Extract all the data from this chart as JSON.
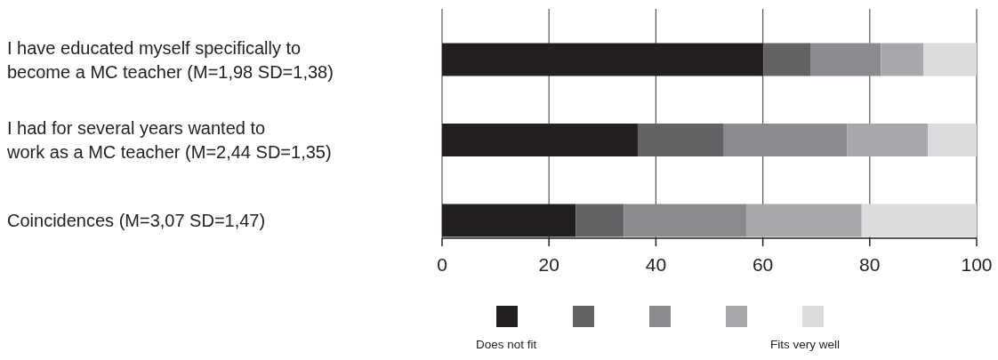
{
  "chart_data": {
    "type": "bar",
    "orientation": "horizontal",
    "stacked": true,
    "categories": [
      "I have educated myself specifically to\nbecome a MC teacher (M=1,98 SD=1,38)",
      "I had for several years wanted to\nwork as a MC teacher (M=2,44 SD=1,35)",
      "Coincidences  (M=3,07 SD=1,47)"
    ],
    "series": [
      {
        "name": "Does not fit",
        "color": "#231f20",
        "values": [
          60.1,
          36.6,
          25.0
        ]
      },
      {
        "color": "#636365",
        "values": [
          8.9,
          16.1,
          9.0
        ]
      },
      {
        "color": "#8a8b8e",
        "values": [
          13.1,
          23.1,
          22.9
        ]
      },
      {
        "color": "#a7a8ab",
        "values": [
          8.0,
          15.1,
          21.6
        ]
      },
      {
        "name": "Fits very well",
        "color": "#dbdcde",
        "values": [
          9.9,
          9.1,
          21.5
        ]
      }
    ],
    "xlim": [
      0,
      100
    ],
    "xticks": [
      0,
      20,
      40,
      60,
      80,
      100
    ],
    "grid": "x",
    "legend": "bottom"
  }
}
